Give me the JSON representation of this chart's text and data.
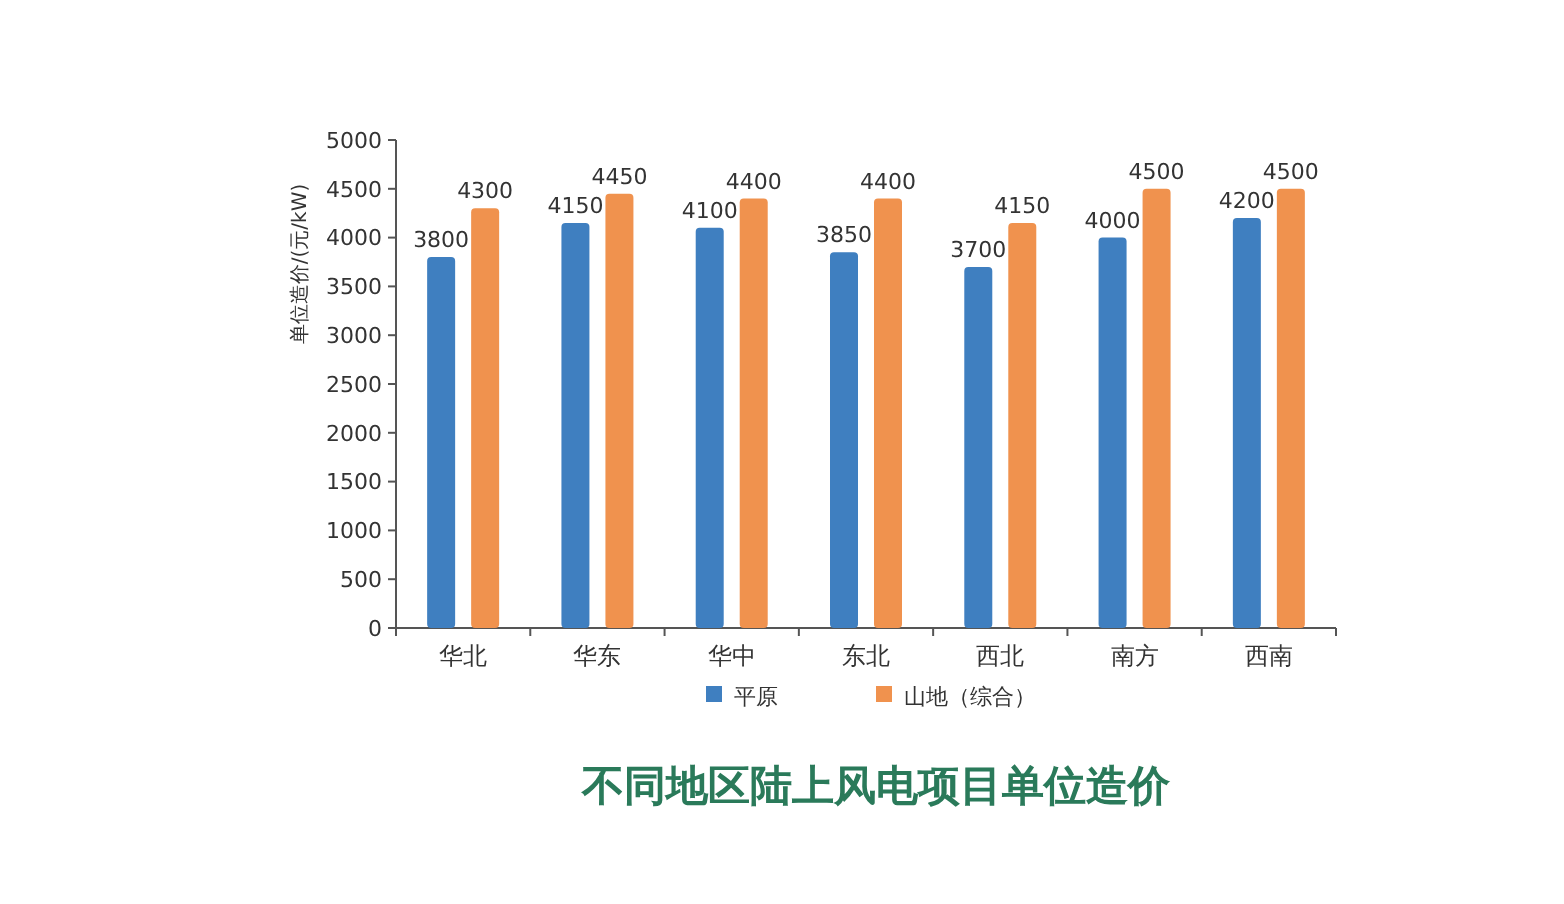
{
  "chart_data": {
    "type": "bar",
    "title": "不同地区陆上风电项目单位造价",
    "ylabel": "单位造价/(元/kW)",
    "categories": [
      "华北",
      "华东",
      "华中",
      "东北",
      "西北",
      "南方",
      "西南"
    ],
    "series": [
      {
        "name": "平原",
        "color": "#3f7fc0",
        "values": [
          3800,
          4150,
          4100,
          3850,
          3700,
          4000,
          4200
        ]
      },
      {
        "name": "山地（综合）",
        "color": "#f0924e",
        "values": [
          4300,
          4450,
          4400,
          4400,
          4150,
          4500,
          4500
        ]
      }
    ],
    "ylim": [
      0,
      5000
    ],
    "yticks": [
      0,
      500,
      1000,
      1500,
      2000,
      2500,
      3000,
      3500,
      4000,
      4500,
      5000
    ],
    "data_labels": true,
    "legend": "bottom",
    "grid": false
  }
}
